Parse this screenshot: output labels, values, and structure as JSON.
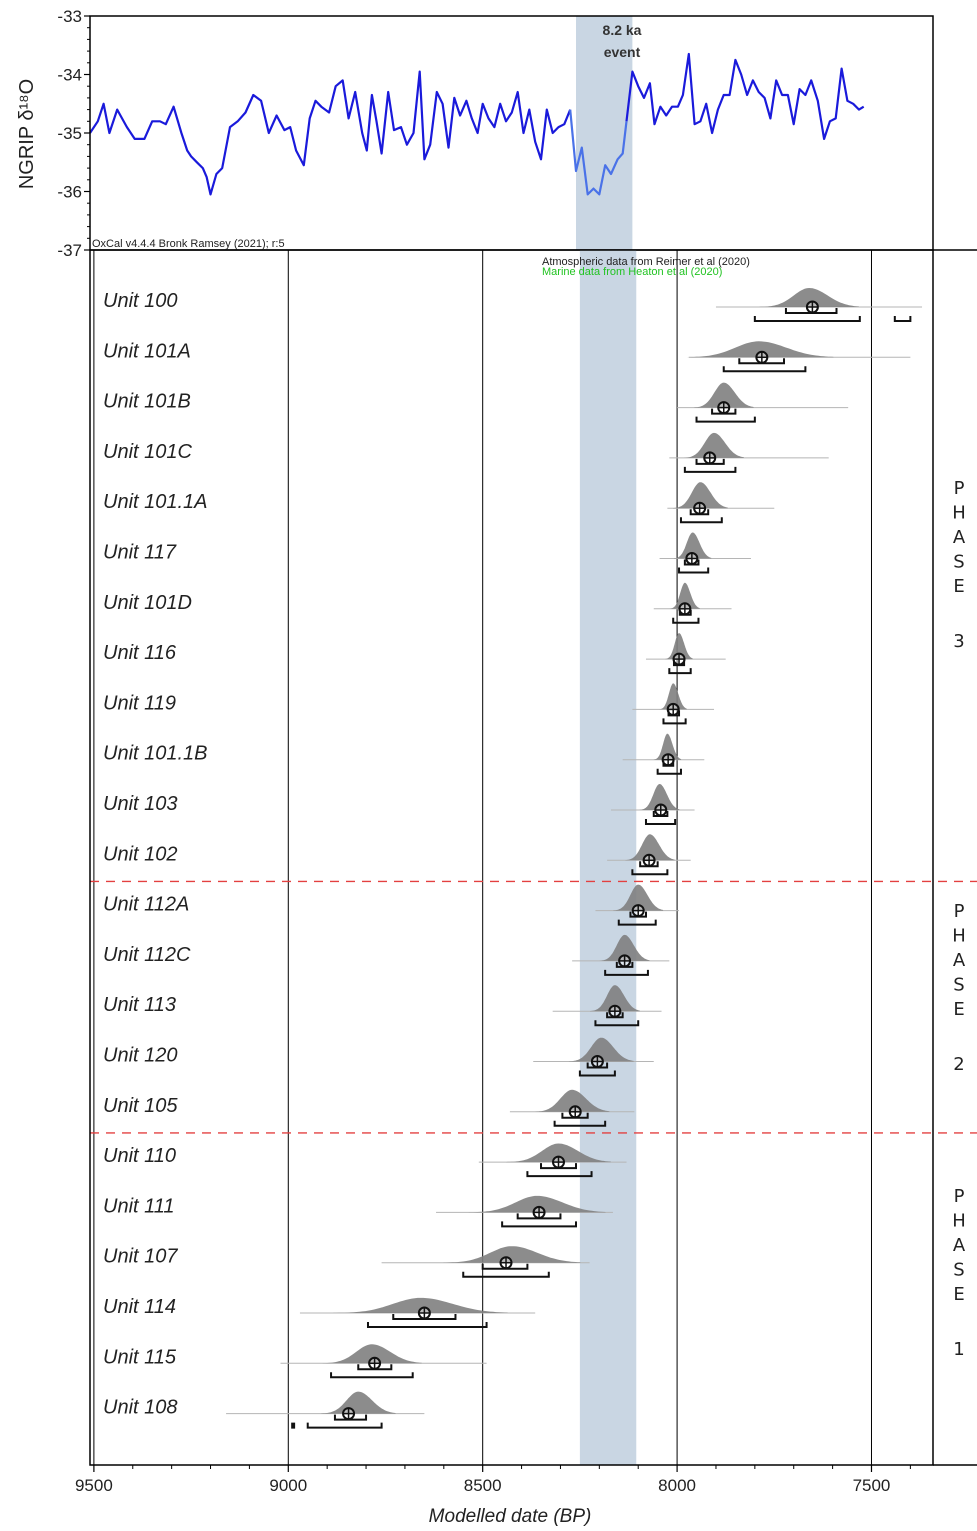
{
  "chart_data": [
    {
      "type": "line",
      "ylabel": "NGRIP δ¹⁸O",
      "ylim": [
        -37,
        -33
      ],
      "y_ticks": [
        "-33",
        "-34",
        "-35",
        "-36",
        "-37"
      ],
      "xlim": [
        9500,
        7370
      ],
      "series": [
        {
          "color": "#1a1adb",
          "points": [
            [
              9500,
              -35.0
            ],
            [
              9480,
              -34.8
            ],
            [
              9465,
              -34.5
            ],
            [
              9450,
              -35.0
            ],
            [
              9430,
              -34.6
            ],
            [
              9405,
              -34.9
            ],
            [
              9385,
              -35.1
            ],
            [
              9360,
              -35.1
            ],
            [
              9340,
              -34.8
            ],
            [
              9320,
              -34.8
            ],
            [
              9305,
              -34.85
            ],
            [
              9285,
              -34.55
            ],
            [
              9265,
              -35.0
            ],
            [
              9250,
              -35.3
            ],
            [
              9240,
              -35.4
            ],
            [
              9225,
              -35.5
            ],
            [
              9210,
              -35.6
            ],
            [
              9200,
              -35.75
            ],
            [
              9190,
              -36.05
            ],
            [
              9175,
              -35.7
            ],
            [
              9160,
              -35.6
            ],
            [
              9140,
              -34.9
            ],
            [
              9120,
              -34.8
            ],
            [
              9100,
              -34.65
            ],
            [
              9080,
              -34.35
            ],
            [
              9060,
              -34.45
            ],
            [
              9040,
              -35.0
            ],
            [
              9020,
              -34.7
            ],
            [
              9000,
              -34.95
            ],
            [
              8985,
              -34.9
            ],
            [
              8970,
              -35.3
            ],
            [
              8950,
              -35.55
            ],
            [
              8935,
              -34.75
            ],
            [
              8920,
              -34.45
            ],
            [
              8905,
              -34.55
            ],
            [
              8885,
              -34.65
            ],
            [
              8868,
              -34.2
            ],
            [
              8850,
              -34.1
            ],
            [
              8835,
              -34.75
            ],
            [
              8818,
              -34.3
            ],
            [
              8800,
              -35.0
            ],
            [
              8788,
              -35.3
            ],
            [
              8775,
              -34.35
            ],
            [
              8763,
              -34.8
            ],
            [
              8750,
              -35.35
            ],
            [
              8733,
              -34.3
            ],
            [
              8718,
              -34.95
            ],
            [
              8700,
              -34.9
            ],
            [
              8685,
              -35.2
            ],
            [
              8668,
              -35.0
            ],
            [
              8652,
              -33.95
            ],
            [
              8640,
              -35.45
            ],
            [
              8625,
              -35.2
            ],
            [
              8608,
              -34.3
            ],
            [
              8593,
              -34.5
            ],
            [
              8578,
              -35.25
            ],
            [
              8563,
              -34.4
            ],
            [
              8548,
              -34.7
            ],
            [
              8532,
              -34.45
            ],
            [
              8518,
              -34.75
            ],
            [
              8503,
              -35.0
            ],
            [
              8490,
              -34.5
            ],
            [
              8475,
              -34.75
            ],
            [
              8460,
              -34.9
            ],
            [
              8445,
              -34.5
            ],
            [
              8430,
              -34.8
            ],
            [
              8415,
              -34.65
            ],
            [
              8400,
              -34.3
            ],
            [
              8385,
              -35.0
            ],
            [
              8370,
              -34.6
            ],
            [
              8355,
              -35.15
            ],
            [
              8340,
              -35.45
            ],
            [
              8325,
              -34.6
            ],
            [
              8310,
              -35.0
            ],
            [
              8295,
              -34.9
            ],
            [
              8280,
              -34.85
            ],
            [
              8265,
              -34.6
            ]
          ]
        },
        {
          "color": "#4a72e8",
          "points": [
            [
              8265,
              -34.6
            ],
            [
              8250,
              -35.65
            ],
            [
              8235,
              -35.25
            ],
            [
              8220,
              -36.05
            ],
            [
              8205,
              -35.95
            ],
            [
              8190,
              -36.05
            ],
            [
              8175,
              -35.55
            ],
            [
              8160,
              -35.7
            ],
            [
              8143,
              -35.45
            ],
            [
              8130,
              -35.35
            ],
            [
              8120,
              -34.8
            ]
          ]
        },
        {
          "color": "#1a1adb",
          "points": [
            [
              8120,
              -34.8
            ],
            [
              8105,
              -33.95
            ],
            [
              8090,
              -34.2
            ],
            [
              8075,
              -34.4
            ],
            [
              8060,
              -34.15
            ],
            [
              8048,
              -34.85
            ],
            [
              8033,
              -34.55
            ],
            [
              8018,
              -34.7
            ],
            [
              8003,
              -34.55
            ],
            [
              7988,
              -34.55
            ],
            [
              7975,
              -34.35
            ],
            [
              7960,
              -33.65
            ],
            [
              7945,
              -34.85
            ],
            [
              7930,
              -34.8
            ],
            [
              7915,
              -34.5
            ],
            [
              7900,
              -35.0
            ],
            [
              7885,
              -34.6
            ],
            [
              7870,
              -34.35
            ],
            [
              7855,
              -34.35
            ],
            [
              7840,
              -33.75
            ],
            [
              7825,
              -34.0
            ],
            [
              7810,
              -34.35
            ],
            [
              7795,
              -34.1
            ],
            [
              7780,
              -34.3
            ],
            [
              7765,
              -34.4
            ],
            [
              7750,
              -34.75
            ],
            [
              7735,
              -34.1
            ],
            [
              7720,
              -34.35
            ],
            [
              7705,
              -34.35
            ],
            [
              7690,
              -34.85
            ],
            [
              7675,
              -34.25
            ],
            [
              7660,
              -34.35
            ],
            [
              7645,
              -34.1
            ],
            [
              7628,
              -34.45
            ],
            [
              7612,
              -35.1
            ],
            [
              7597,
              -34.8
            ],
            [
              7582,
              -34.75
            ],
            [
              7567,
              -33.9
            ],
            [
              7552,
              -34.45
            ],
            [
              7537,
              -34.5
            ],
            [
              7522,
              -34.6
            ],
            [
              7510,
              -34.55
            ]
          ]
        }
      ],
      "event_band": {
        "from": 8250,
        "to": 8105,
        "label_line1": "8.2 ka",
        "label_line2": "event",
        "color": "#c9d6e3"
      }
    },
    {
      "type": "scatter",
      "xlabel": "Modelled date (BP)",
      "x_ticks": [
        "9500",
        "9000",
        "8500",
        "8000",
        "7500"
      ],
      "xlim": [
        9510,
        7370
      ],
      "software_note": "OxCal v4.4.4 Bronk Ramsey (2021); r:5",
      "credits": [
        {
          "text": "Atmospheric data from Reimer et al (2020)",
          "color": "#222222"
        },
        {
          "text": "Marine data from Heaton et al (2020)",
          "color": "#22c322"
        }
      ],
      "posterior_fill": "#7f7f7f",
      "dividers_color": "#e34040",
      "units": [
        {
          "name": "Unit 100",
          "mean": 7652,
          "mode": 7660,
          "spread": 40,
          "range_from": 7900,
          "range_to": 7370,
          "r68": [
            7720,
            7590
          ],
          "r95": [
            7800,
            7530
          ],
          "extra95": [
            7440,
            7400
          ],
          "phase": 3
        },
        {
          "name": "Unit 101A",
          "mean": 7782,
          "mode": 7790,
          "spread": 60,
          "range_from": 7970,
          "range_to": 7400,
          "r68": [
            7840,
            7725
          ],
          "r95": [
            7880,
            7670
          ],
          "phase": 3
        },
        {
          "name": "Unit 101B",
          "mean": 7880,
          "mode": 7880,
          "spread": 24,
          "range_from": 8000,
          "range_to": 7560,
          "r68": [
            7910,
            7850
          ],
          "r95": [
            7950,
            7800
          ],
          "phase": 3
        },
        {
          "name": "Unit 101C",
          "mean": 7916,
          "mode": 7905,
          "spread": 24,
          "range_from": 8020,
          "range_to": 7610,
          "r68": [
            7950,
            7880
          ],
          "r95": [
            7980,
            7850
          ],
          "phase": 3
        },
        {
          "name": "Unit 101.1A",
          "mean": 7942,
          "mode": 7940,
          "spread": 22,
          "range_from": 8025,
          "range_to": 7750,
          "r68": [
            7965,
            7920
          ],
          "r95": [
            7990,
            7885
          ],
          "phase": 3
        },
        {
          "name": "Unit 117",
          "mean": 7962,
          "mode": 7960,
          "spread": 15,
          "range_from": 8045,
          "range_to": 7810,
          "r68": [
            7980,
            7945
          ],
          "r95": [
            7995,
            7920
          ],
          "phase": 3
        },
        {
          "name": "Unit 101D",
          "mean": 7980,
          "mode": 7980,
          "spread": 12,
          "range_from": 8060,
          "range_to": 7860,
          "r68": [
            7993,
            7965
          ],
          "r95": [
            8010,
            7945
          ],
          "phase": 3
        },
        {
          "name": "Unit 116",
          "mean": 7995,
          "mode": 7995,
          "spread": 11,
          "range_from": 8080,
          "range_to": 7875,
          "r68": [
            8008,
            7982
          ],
          "r95": [
            8020,
            7965
          ],
          "phase": 3
        },
        {
          "name": "Unit 119",
          "mean": 8010,
          "mode": 8010,
          "spread": 11,
          "range_from": 8115,
          "range_to": 7905,
          "r68": [
            8022,
            7995
          ],
          "r95": [
            8035,
            7978
          ],
          "phase": 3
        },
        {
          "name": "Unit 101.1B",
          "mean": 8023,
          "mode": 8025,
          "spread": 11,
          "range_from": 8140,
          "range_to": 7930,
          "r68": [
            8035,
            8010
          ],
          "r95": [
            8050,
            7990
          ],
          "phase": 3
        },
        {
          "name": "Unit 103",
          "mean": 8042,
          "mode": 8045,
          "spread": 16,
          "range_from": 8170,
          "range_to": 7955,
          "r68": [
            8060,
            8025
          ],
          "r95": [
            8080,
            8005
          ],
          "phase": 3
        },
        {
          "name": "Unit 102",
          "mean": 8072,
          "mode": 8070,
          "spread": 20,
          "range_from": 8180,
          "range_to": 7965,
          "r68": [
            8095,
            8050
          ],
          "r95": [
            8115,
            8025
          ],
          "phase": 3
        },
        {
          "name": "Unit 112A",
          "mean": 8100,
          "mode": 8100,
          "spread": 20,
          "range_from": 8210,
          "range_to": 7995,
          "r68": [
            8120,
            8080
          ],
          "r95": [
            8150,
            8055
          ],
          "phase": 2
        },
        {
          "name": "Unit 112C",
          "mean": 8135,
          "mode": 8135,
          "spread": 20,
          "range_from": 8270,
          "range_to": 8020,
          "r68": [
            8155,
            8115
          ],
          "r95": [
            8185,
            8075
          ],
          "phase": 2
        },
        {
          "name": "Unit 113",
          "mean": 8160,
          "mode": 8160,
          "spread": 20,
          "range_from": 8320,
          "range_to": 8040,
          "r68": [
            8180,
            8140
          ],
          "r95": [
            8210,
            8100
          ],
          "phase": 2
        },
        {
          "name": "Unit 120",
          "mean": 8205,
          "mode": 8195,
          "spread": 26,
          "range_from": 8370,
          "range_to": 8060,
          "r68": [
            8230,
            8180
          ],
          "r95": [
            8250,
            8160
          ],
          "phase": 2
        },
        {
          "name": "Unit 105",
          "mean": 8262,
          "mode": 8270,
          "spread": 30,
          "range_from": 8430,
          "range_to": 8110,
          "r68": [
            8295,
            8230
          ],
          "r95": [
            8315,
            8185
          ],
          "phase": 2
        },
        {
          "name": "Unit 110",
          "mean": 8305,
          "mode": 8305,
          "spread": 42,
          "range_from": 8510,
          "range_to": 8130,
          "r68": [
            8350,
            8260
          ],
          "r95": [
            8385,
            8220
          ],
          "phase": 1
        },
        {
          "name": "Unit 111",
          "mean": 8355,
          "mode": 8360,
          "spread": 55,
          "range_from": 8620,
          "range_to": 8165,
          "r68": [
            8410,
            8300
          ],
          "r95": [
            8450,
            8260
          ],
          "phase": 1
        },
        {
          "name": "Unit 107",
          "mean": 8440,
          "mode": 8425,
          "spread": 55,
          "range_from": 8760,
          "range_to": 8225,
          "r68": [
            8500,
            8385
          ],
          "r95": [
            8550,
            8330
          ],
          "phase": 1
        },
        {
          "name": "Unit 114",
          "mean": 8650,
          "mode": 8660,
          "spread": 70,
          "range_from": 8970,
          "range_to": 8365,
          "r68": [
            8730,
            8570
          ],
          "r95": [
            8795,
            8490
          ],
          "phase": 1
        },
        {
          "name": "Unit 115",
          "mean": 8778,
          "mode": 8785,
          "spread": 40,
          "range_from": 9020,
          "range_to": 8490,
          "r68": [
            8820,
            8735
          ],
          "r95": [
            8890,
            8680
          ],
          "phase": 1
        },
        {
          "name": "Unit 108",
          "mean": 8845,
          "mode": 8820,
          "spread": 30,
          "range_from": 9160,
          "range_to": 8650,
          "r68": [
            8880,
            8800
          ],
          "r95": [
            8950,
            8760
          ],
          "extra95": [
            8990,
            8985
          ],
          "phase": 1
        }
      ],
      "phases": [
        {
          "letters": [
            "P",
            "H",
            "A",
            "S",
            "E"
          ],
          "number": "3"
        },
        {
          "letters": [
            "P",
            "H",
            "A",
            "S",
            "E"
          ],
          "number": "2"
        },
        {
          "letters": [
            "P",
            "H",
            "A",
            "S",
            "E"
          ],
          "number": "1"
        }
      ]
    }
  ]
}
